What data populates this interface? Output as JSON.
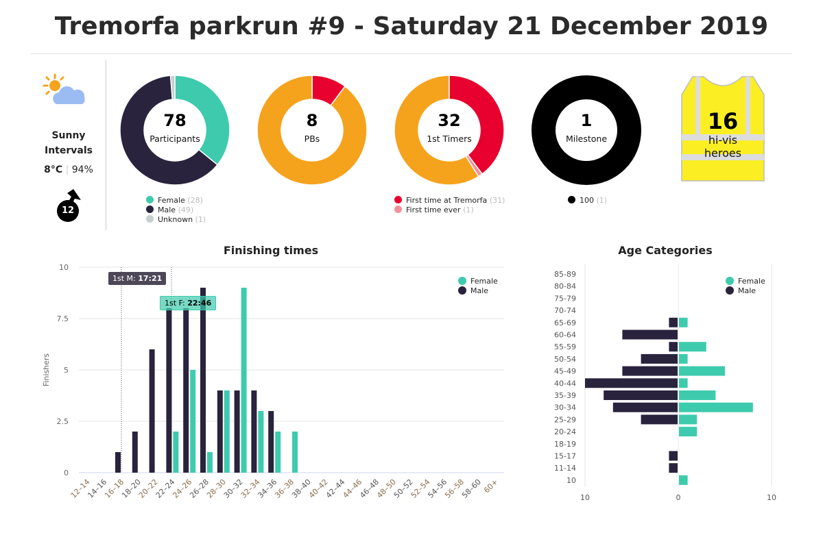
{
  "title": "Tremorfa parkrun #9 - Saturday 21 December 2019",
  "weather": {
    "icon": "sun-cloud-icon",
    "condition_line1": "Sunny",
    "condition_line2": "Intervals",
    "temp": "8°C",
    "humidity": "94%",
    "wind_speed": "12",
    "wind_icon": "wind-arrow-icon"
  },
  "colors": {
    "female": "#3ecbad",
    "male": "#2a233d",
    "unknown": "#c8cdd0",
    "orange": "#f5a31d",
    "red": "#e8002e",
    "pink": "#f1919a",
    "black": "#000000",
    "vest": "#fbef23"
  },
  "donuts": [
    {
      "value": "78",
      "label": "Participants",
      "segments": [
        {
          "name": "Female",
          "count": 28,
          "color": "#3ecbad"
        },
        {
          "name": "Male",
          "count": 49,
          "color": "#2a233d"
        },
        {
          "name": "Unknown",
          "count": 1,
          "color": "#c8cdd0"
        }
      ],
      "legend": [
        {
          "name": "Female",
          "count": "(28)"
        },
        {
          "name": "Male",
          "count": "(49)"
        },
        {
          "name": "Unknown",
          "count": "(1)"
        }
      ]
    },
    {
      "value": "8",
      "label": "PBs",
      "segments": [
        {
          "count": 8,
          "color": "#e8002e"
        },
        {
          "count": 70,
          "color": "#f5a31d"
        }
      ],
      "legend": []
    },
    {
      "value": "32",
      "label": "1st Timers",
      "segments": [
        {
          "name": "First time at Tremorfa",
          "count": 31,
          "color": "#e8002e"
        },
        {
          "name": "First time ever",
          "count": 1,
          "color": "#f1919a"
        },
        {
          "count": 46,
          "color": "#f5a31d"
        }
      ],
      "legend": [
        {
          "name": "First time at Tremorfa",
          "count": "(31)"
        },
        {
          "name": "First time ever",
          "count": "(1)"
        }
      ]
    },
    {
      "value": "1",
      "label": "Milestone",
      "segments": [
        {
          "name": "100",
          "count": 1,
          "color": "#000000"
        }
      ],
      "legend": [
        {
          "name": "100",
          "count": "(1)"
        }
      ]
    }
  ],
  "hivis": {
    "value": "16",
    "line1": "hi-vis",
    "line2": "heroes"
  },
  "chart_data": [
    {
      "type": "bar",
      "title": "Finishing times",
      "ylabel": "Finishers",
      "xlabel": "",
      "ylim": [
        0,
        10
      ],
      "yticks": [
        "0",
        "2.5",
        "5",
        "7.5",
        "10"
      ],
      "categories": [
        "12–14",
        "14–16",
        "16–18",
        "18–20",
        "20–22",
        "22–24",
        "24–26",
        "26–28",
        "28–30",
        "30–32",
        "32–34",
        "34–36",
        "36–38",
        "38–40",
        "40–42",
        "42–44",
        "44–46",
        "46–48",
        "48–50",
        "50–52",
        "52–54",
        "54–56",
        "56–58",
        "58–60",
        "60+"
      ],
      "series": [
        {
          "name": "Male",
          "color": "#2a233d",
          "values": [
            0,
            0,
            1,
            2,
            6,
            8,
            8,
            9,
            4,
            4,
            4,
            3,
            0,
            0,
            0,
            0,
            0,
            0,
            0,
            0,
            0,
            0,
            0,
            0,
            0
          ]
        },
        {
          "name": "Female",
          "color": "#3ecbad",
          "values": [
            0,
            0,
            0,
            0,
            0,
            2,
            5,
            1,
            4,
            9,
            3,
            2,
            2,
            0,
            0,
            0,
            0,
            0,
            0,
            0,
            0,
            0,
            0,
            0,
            0
          ]
        }
      ],
      "legend": [
        "Female",
        "Male"
      ],
      "legend_position": "top-right",
      "grid": true,
      "annotations": [
        {
          "prefix": "1st M: ",
          "time": "17:21"
        },
        {
          "prefix": "1st F: ",
          "time": "22:46"
        }
      ]
    },
    {
      "type": "bar",
      "orientation": "horizontal",
      "title": "Age Categories",
      "xlim": [
        -10,
        10
      ],
      "xticks": [
        "10",
        "0",
        "10"
      ],
      "categories": [
        "85-89",
        "80-84",
        "75-79",
        "70-74",
        "65-69",
        "60-64",
        "55-59",
        "50-54",
        "45-49",
        "40-44",
        "35-39",
        "30-34",
        "25-29",
        "20-24",
        "18-19",
        "15-17",
        "11-14",
        "10"
      ],
      "series": [
        {
          "name": "Male",
          "color": "#2a233d",
          "values": [
            0,
            0,
            0,
            0,
            1,
            6,
            1,
            4,
            6,
            10,
            8,
            7,
            4,
            0,
            0,
            1,
            1,
            0
          ]
        },
        {
          "name": "Female",
          "color": "#3ecbad",
          "values": [
            0,
            0,
            0,
            0,
            1,
            0,
            3,
            1,
            5,
            1,
            4,
            8,
            2,
            2,
            0,
            0,
            0,
            1
          ]
        }
      ],
      "legend": [
        "Female",
        "Male"
      ],
      "legend_position": "top-right"
    }
  ]
}
